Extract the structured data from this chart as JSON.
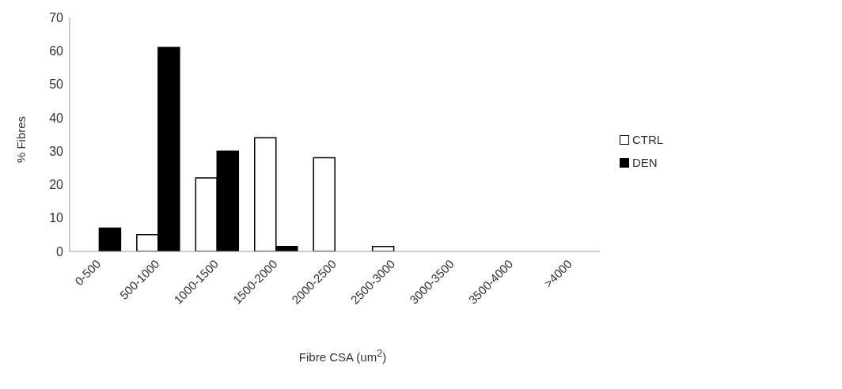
{
  "chart_data": {
    "type": "bar",
    "xlabel": "Fibre CSA (um$^{2}$)",
    "ylabel": "% Fibres",
    "categories": [
      "0-500",
      "500-1000",
      "1000-1500",
      "1500-2000",
      "2000-2500",
      "2500-3000",
      "3000-3500",
      "3500-4000",
      ">4000"
    ],
    "series": [
      {
        "name": "CTRL",
        "color": "#ffffff",
        "values": [
          0,
          5,
          22,
          34,
          28,
          1.5,
          0,
          0,
          0
        ]
      },
      {
        "name": "DEN",
        "color": "#000000",
        "values": [
          7,
          61,
          30,
          1.5,
          0,
          0,
          0,
          0,
          0
        ]
      }
    ],
    "ylim": [
      0,
      70
    ],
    "yticks": [
      0,
      10,
      20,
      30,
      40,
      50,
      60,
      70
    ],
    "grid": false,
    "legend": "right"
  }
}
